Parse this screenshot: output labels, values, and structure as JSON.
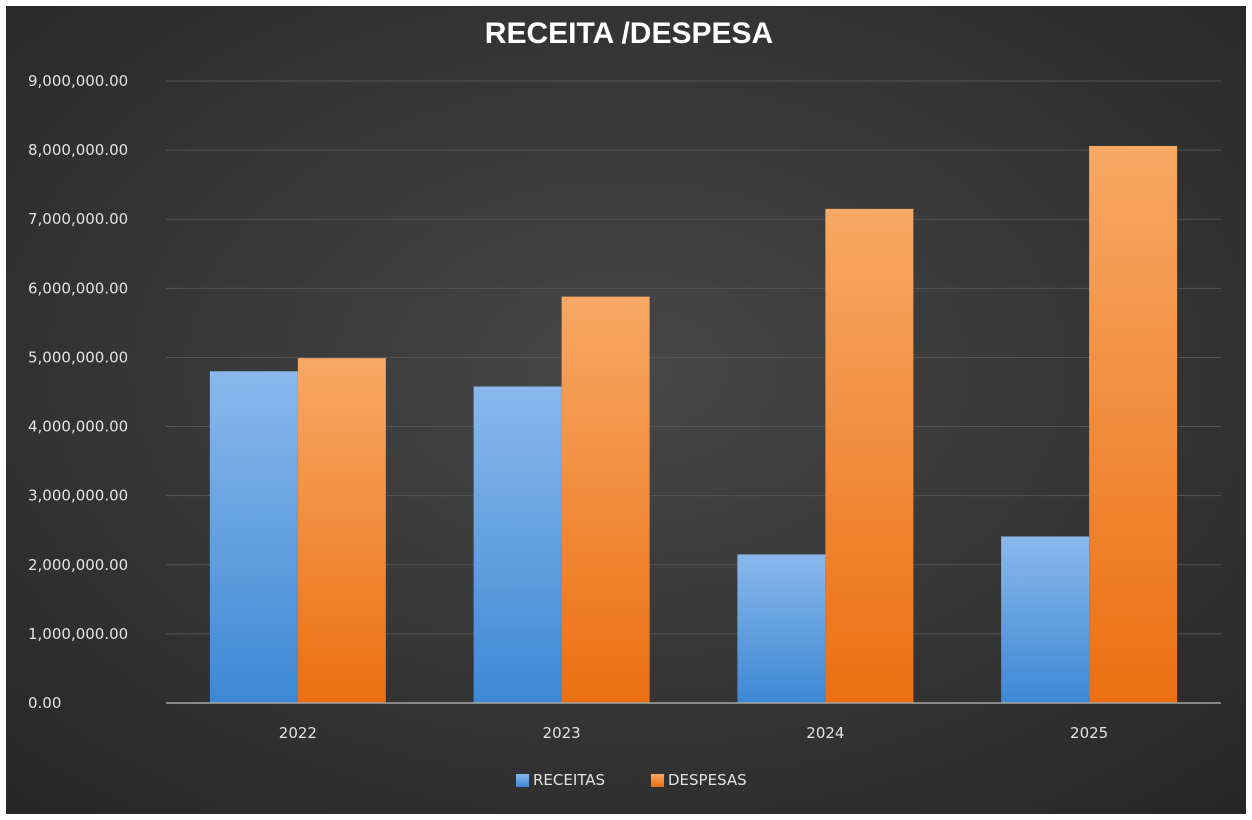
{
  "chart_data": {
    "type": "bar",
    "title": "RECEITA /DESPESA",
    "categories": [
      "2022",
      "2023",
      "2024",
      "2025"
    ],
    "series": [
      {
        "name": "RECEITAS",
        "values": [
          4800000,
          4580000,
          2150000,
          2410000
        ]
      },
      {
        "name": "DESPESAS",
        "values": [
          4990000,
          5880000,
          7150000,
          8060000
        ]
      }
    ],
    "ylim": [
      0,
      9000000
    ],
    "yticks": [
      0,
      1000000,
      2000000,
      3000000,
      4000000,
      5000000,
      6000000,
      7000000,
      8000000,
      9000000
    ],
    "ytick_labels": [
      "0.00",
      "1,000,000.00",
      "2,000,000.00",
      "3,000,000.00",
      "4,000,000.00",
      "5,000,000.00",
      "6,000,000.00",
      "7,000,000.00",
      "8,000,000.00",
      "9,000,000.00"
    ],
    "grid": true,
    "legend_position": "bottom",
    "colors": {
      "background_center": "#474747",
      "background_edge": "#262626",
      "gridline": "#555555",
      "axis": "#a6a6a6",
      "RECEITAS_light": "#8ab8ec",
      "RECEITAS_dark": "#3d88d4",
      "DESPESAS_light": "#f7a865",
      "DESPESAS_dark": "#ec6f12"
    }
  }
}
